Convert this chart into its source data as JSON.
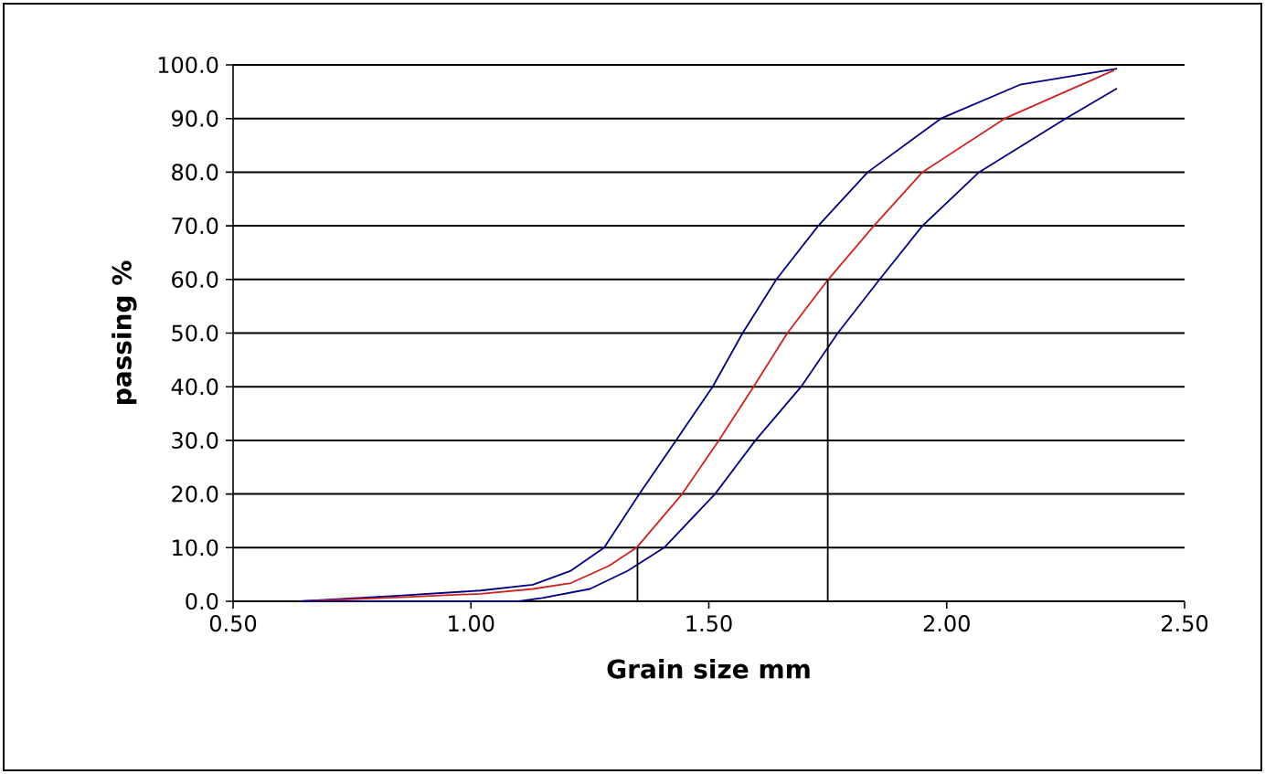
{
  "chart_data": {
    "type": "line",
    "xlabel": "Grain size mm",
    "ylabel": "passing %",
    "xlim": [
      0.5,
      2.5
    ],
    "ylim": [
      0,
      100
    ],
    "xticks": [
      {
        "value": 0.5,
        "label": "0.50"
      },
      {
        "value": 1.0,
        "label": "1.00"
      },
      {
        "value": 1.5,
        "label": "1.50"
      },
      {
        "value": 2.0,
        "label": "2.00"
      },
      {
        "value": 2.5,
        "label": "2.50"
      }
    ],
    "yticks": [
      {
        "value": 0,
        "label": "0.0"
      },
      {
        "value": 10,
        "label": "10.0"
      },
      {
        "value": 20,
        "label": "20.0"
      },
      {
        "value": 30,
        "label": "30.0"
      },
      {
        "value": 40,
        "label": "40.0"
      },
      {
        "value": 50,
        "label": "50.0"
      },
      {
        "value": 60,
        "label": "60.0"
      },
      {
        "value": 70,
        "label": "70.0"
      },
      {
        "value": 80,
        "label": "80.0"
      },
      {
        "value": 90,
        "label": "90.0"
      },
      {
        "value": 100,
        "label": "100.0"
      }
    ],
    "grid": "y",
    "legend": false,
    "marker": "none",
    "line_style": "solid",
    "series": [
      {
        "color": "#000080",
        "x": [
          0.64,
          0.84,
          1.02,
          1.13,
          1.21,
          1.28,
          1.354,
          1.431,
          1.508,
          1.571,
          1.642,
          1.73,
          1.834,
          1.988,
          2.154,
          2.358
        ],
        "values": [
          0,
          1.0,
          2.0,
          3.1,
          5.7,
          10,
          20,
          30,
          40,
          50,
          60,
          70,
          80,
          90,
          96.3,
          99.3
        ]
      },
      {
        "color": "#cc2222",
        "x": [
          0.64,
          0.84,
          1.02,
          1.13,
          1.21,
          1.29,
          1.348,
          1.444,
          1.521,
          1.594,
          1.665,
          1.751,
          1.847,
          1.949,
          2.122,
          2.352
        ],
        "values": [
          0,
          0.7,
          1.4,
          2.3,
          3.4,
          6.6,
          10,
          20,
          30,
          40,
          50,
          60,
          70,
          80,
          90,
          99.0
        ]
      },
      {
        "color": "#000080",
        "x": [
          0.64,
          1.1,
          1.15,
          1.25,
          1.33,
          1.406,
          1.513,
          1.598,
          1.694,
          1.771,
          1.859,
          1.949,
          2.068,
          2.25,
          2.358
        ],
        "values": [
          0,
          0,
          0.6,
          2.3,
          5.7,
          10,
          20,
          30,
          40,
          50,
          60,
          70,
          80,
          90,
          95.6
        ]
      },
      {
        "color": "#000000",
        "x": [
          1.35,
          1.35
        ],
        "values": [
          0,
          10
        ]
      },
      {
        "color": "#000000",
        "x": [
          1.75,
          1.75
        ],
        "values": [
          0,
          60
        ]
      }
    ]
  }
}
